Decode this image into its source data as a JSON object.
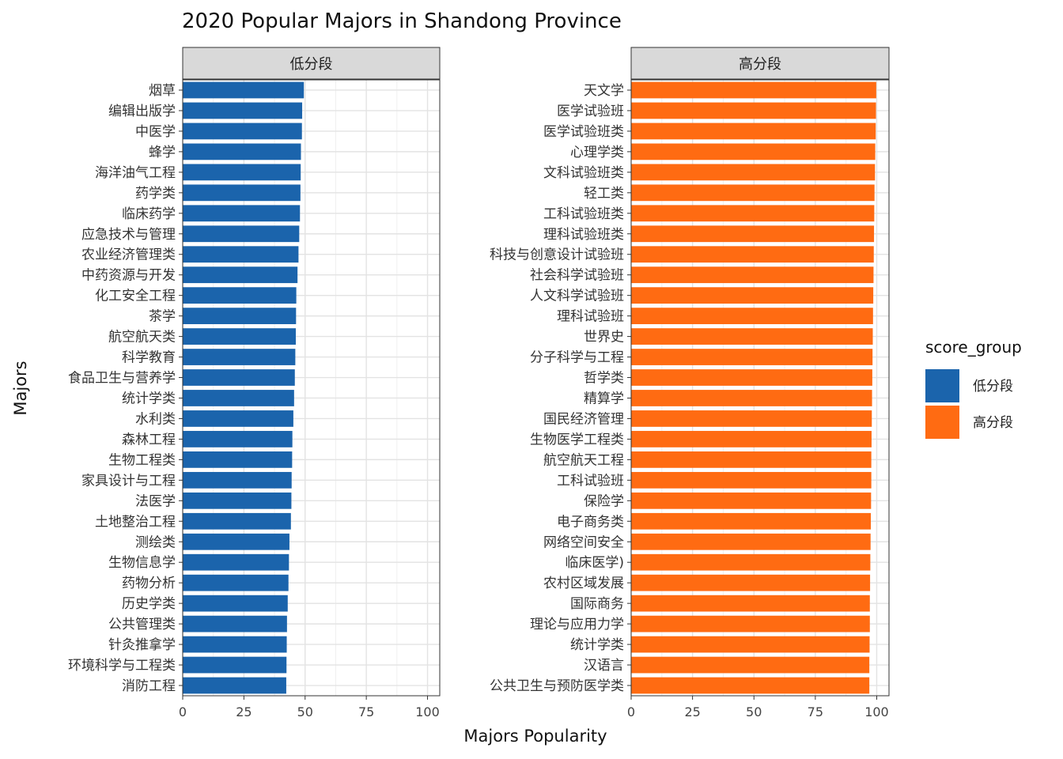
{
  "chart_data": {
    "type": "bar",
    "orientation": "horizontal",
    "title": "2020 Popular Majors in Shandong Province",
    "xlabel": "Majors Popularity",
    "ylabel": "Majors",
    "xlim": [
      0,
      105
    ],
    "x_ticks": [
      0,
      25,
      50,
      75,
      100
    ],
    "grid": true,
    "legend": {
      "title": "score_group",
      "position": "right",
      "entries": [
        {
          "label": "低分段",
          "color": "#1b64ac"
        },
        {
          "label": "高分段",
          "color": "#ff6b12"
        }
      ]
    },
    "panels": [
      {
        "strip": "低分段",
        "color": "#1b64ac",
        "categories": [
          "烟草",
          "编辑出版学",
          "中医学",
          "蜂学",
          "海洋油气工程",
          "药学类",
          "临床药学",
          "应急技术与管理",
          "农业经济管理类",
          "中药资源与开发",
          "化工安全工程",
          "茶学",
          "航空航天类",
          "科学教育",
          "食品卫生与营养学",
          "统计学类",
          "水利类",
          "森林工程",
          "生物工程类",
          "家具设计与工程",
          "法医学",
          "土地整治工程",
          "测绘类",
          "生物信息学",
          "药物分析",
          "历史学类",
          "公共管理类",
          "针灸推拿学",
          "环境科学与工程类",
          "消防工程"
        ],
        "values": [
          49.5,
          48.8,
          48.7,
          48.3,
          48.2,
          48.1,
          47.9,
          47.6,
          47.3,
          46.9,
          46.4,
          46.3,
          46.2,
          46.0,
          45.8,
          45.5,
          45.2,
          44.8,
          44.7,
          44.5,
          44.4,
          44.2,
          43.6,
          43.4,
          43.2,
          42.9,
          42.6,
          42.5,
          42.4,
          42.3
        ]
      },
      {
        "strip": "高分段",
        "color": "#ff6b12",
        "categories": [
          "天文学",
          "医学试验班",
          "医学试验班类",
          "心理学类",
          "文科试验班类",
          "轻工类",
          "工科试验班类",
          "理科试验班类",
          "科技与创意设计试验班",
          "社会科学试验班",
          "人文科学试验班",
          "理科试验班",
          "世界史",
          "分子科学与工程",
          "哲学类",
          "精算学",
          "国民经济管理",
          "生物医学工程类",
          "航空航天工程",
          "工科试验班",
          "保险学",
          "电子商务类",
          "网络空间安全",
          "临床医学)",
          "农村区域发展",
          "国际商务",
          "理论与应用力学",
          "统计学类",
          "汉语言",
          "公共卫生与预防医学类"
        ],
        "values": [
          99.8,
          99.7,
          99.6,
          99.4,
          99.3,
          99.1,
          99.0,
          98.9,
          98.8,
          98.7,
          98.6,
          98.5,
          98.4,
          98.3,
          98.2,
          98.1,
          98.0,
          97.9,
          97.8,
          97.8,
          97.7,
          97.6,
          97.5,
          97.4,
          97.3,
          97.2,
          97.2,
          97.1,
          97.0,
          97.0
        ]
      }
    ]
  }
}
